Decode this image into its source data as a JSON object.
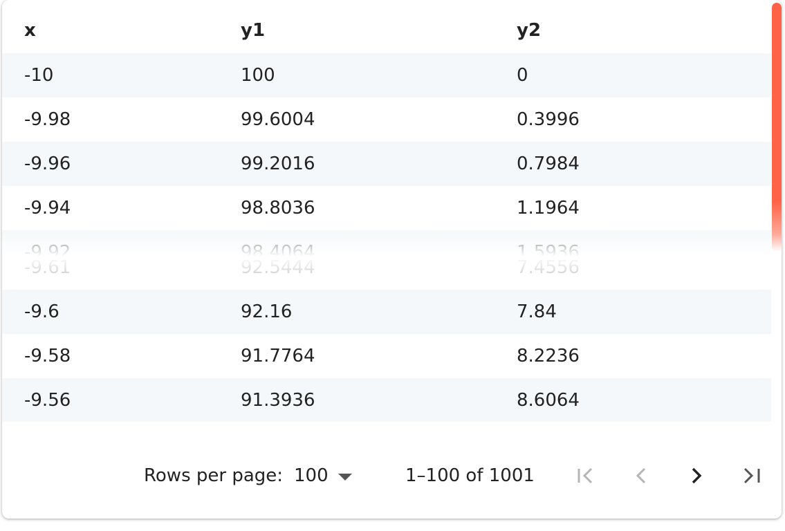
{
  "table": {
    "columns": [
      "x",
      "y1",
      "y2"
    ],
    "rows": [
      [
        "-10",
        "100",
        "0"
      ],
      [
        "-9.98",
        "99.6004",
        "0.3996"
      ],
      [
        "-9.96",
        "99.2016",
        "0.7984"
      ],
      [
        "-9.94",
        "98.8036",
        "1.1964"
      ],
      [
        "-9.92",
        "98.4064",
        "1.5936"
      ],
      [
        "-9.61",
        "92.5444",
        "7.4556"
      ],
      [
        "-9.6",
        "92.16",
        "7.84"
      ],
      [
        "-9.58",
        "91.7764",
        "8.2236"
      ],
      [
        "-9.56",
        "91.3936",
        "8.6064"
      ]
    ]
  },
  "pagination": {
    "rows_per_page_label": "Rows per page:",
    "rows_per_page_value": "100",
    "range_label": "1–100 of 1001"
  },
  "scrollbar": {
    "color": "#ff6347"
  },
  "icons": {
    "first_page": "first-page-icon",
    "previous_page": "chevron-left-icon",
    "next_page": "chevron-right-icon",
    "last_page": "last-page-icon",
    "dropdown": "caret-down-icon"
  }
}
